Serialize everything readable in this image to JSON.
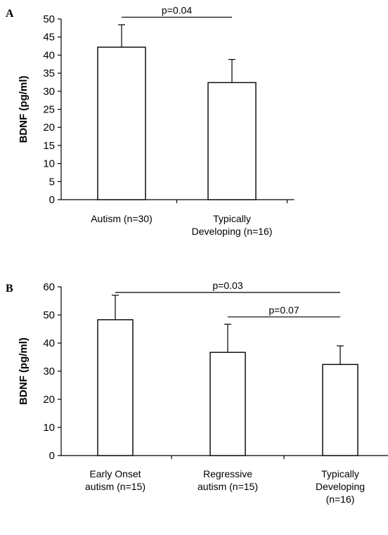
{
  "chart_data": [
    {
      "type": "bar",
      "panel": "A",
      "ylabel": "BDNF (pg/ml)",
      "ylim": [
        0,
        50
      ],
      "ytick_step": 5,
      "categories": [
        [
          "Autism (n=30)"
        ],
        [
          "Typically",
          "Developing (n=16)"
        ]
      ],
      "values": [
        42.2,
        32.4
      ],
      "error": [
        6.2,
        6.4
      ],
      "grid": false,
      "significance": [
        {
          "from": 0,
          "to": 1,
          "label": "p=0.04",
          "y": 50.5
        }
      ]
    },
    {
      "type": "bar",
      "panel": "B",
      "ylabel": "BDNF (pg/ml)",
      "ylim": [
        0,
        60
      ],
      "ytick_step": 10,
      "categories": [
        [
          "Early Onset",
          "autism (n=15)"
        ],
        [
          "Regressive",
          "autism (n=15)"
        ],
        [
          "Typically",
          "Developing",
          "(n=16)"
        ]
      ],
      "values": [
        48.3,
        36.7,
        32.4
      ],
      "error": [
        8.7,
        10.0,
        6.6
      ],
      "grid": false,
      "significance": [
        {
          "from": 0,
          "to": 2,
          "label": "p=0.03",
          "y": 58
        },
        {
          "from": 1,
          "to": 2,
          "label": "p=0.07",
          "y": 49.3
        }
      ]
    }
  ]
}
